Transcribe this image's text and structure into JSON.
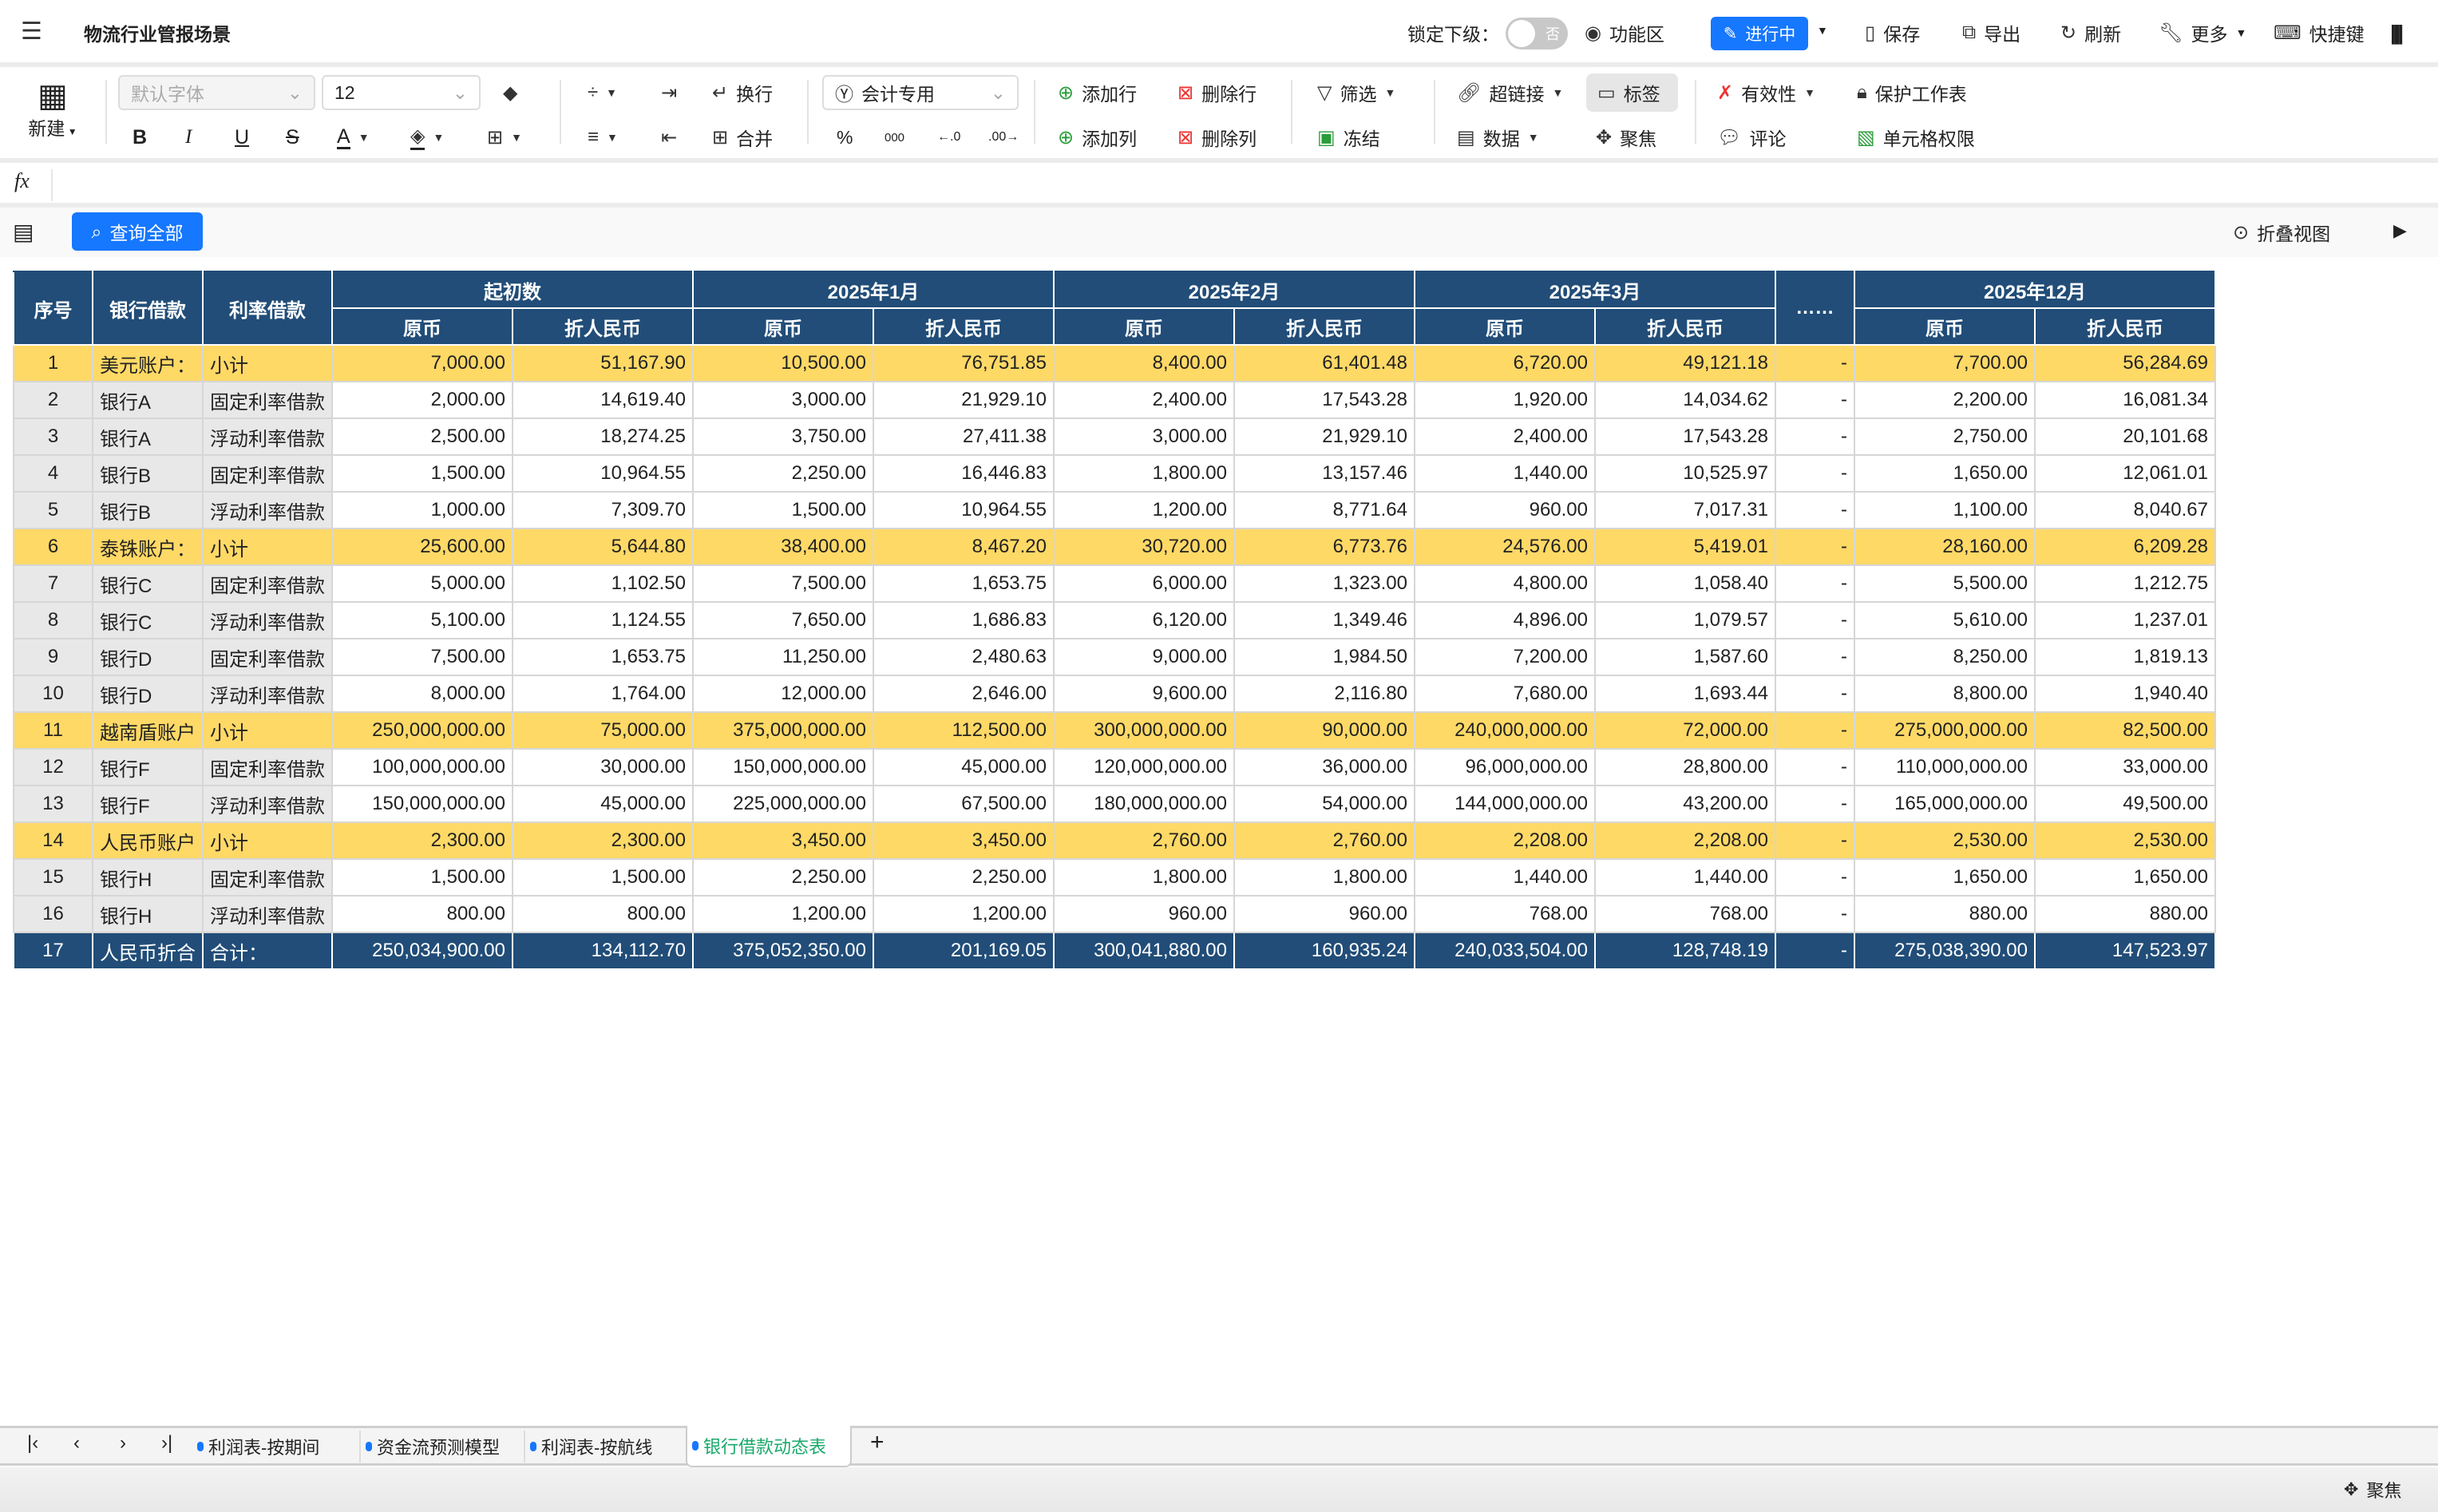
{
  "app": {
    "title": "物流行业管报场景",
    "menu_icon": "menu-icon"
  },
  "topbar": {
    "lock_label": "锁定下级：",
    "lock_toggle": "否",
    "lock_value": false,
    "function_area": "功能区",
    "status_button": "进行中",
    "save": "保存",
    "export": "导出",
    "refresh": "刷新",
    "more": "更多",
    "shortcuts": "快捷键"
  },
  "toolbar": {
    "new": "新建",
    "font_placeholder": "默认字体",
    "font_size": "12",
    "wrap": "换行",
    "merge": "合并",
    "number_format": "会计专用",
    "add_row": "添加行",
    "delete_row": "删除行",
    "add_col": "添加列",
    "delete_col": "删除列",
    "filter": "筛选",
    "freeze": "冻结",
    "hyperlink": "超链接",
    "data": "数据",
    "tag": "标签",
    "focus": "聚焦",
    "validity": "有效性",
    "comment": "评论",
    "protect_sheet": "保护工作表",
    "cell_permission": "单元格权限",
    "bold": "B",
    "italic": "I",
    "underline": "U",
    "strike": "S",
    "font_color": "A",
    "percent": "%",
    "thousands": "000"
  },
  "formula_bar": {
    "fx": "fx",
    "value": ""
  },
  "query": {
    "button": "查询全部",
    "collapse_view": "折叠视图"
  },
  "table": {
    "headers": {
      "seq": "序号",
      "bank": "银行借款",
      "type": "利率借款",
      "periods": [
        "起初数",
        "2025年1月",
        "2025年2月",
        "2025年3月",
        "……",
        "2025年12月"
      ],
      "sub": [
        "原币",
        "折人民币"
      ]
    },
    "rows": [
      {
        "seq": "1",
        "bank": "美元账户：",
        "type": "小计",
        "kind": "sub",
        "values": [
          "7,000.00",
          "51,167.90",
          "10,500.00",
          "76,751.85",
          "8,400.00",
          "61,401.48",
          "6,720.00",
          "49,121.18",
          "-",
          "7,700.00",
          "56,284.69"
        ]
      },
      {
        "seq": "2",
        "bank": "银行A",
        "type": "固定利率借款",
        "kind": "normal",
        "values": [
          "2,000.00",
          "14,619.40",
          "3,000.00",
          "21,929.10",
          "2,400.00",
          "17,543.28",
          "1,920.00",
          "14,034.62",
          "-",
          "2,200.00",
          "16,081.34"
        ]
      },
      {
        "seq": "3",
        "bank": "银行A",
        "type": "浮动利率借款",
        "kind": "normal",
        "values": [
          "2,500.00",
          "18,274.25",
          "3,750.00",
          "27,411.38",
          "3,000.00",
          "21,929.10",
          "2,400.00",
          "17,543.28",
          "-",
          "2,750.00",
          "20,101.68"
        ]
      },
      {
        "seq": "4",
        "bank": "银行B",
        "type": "固定利率借款",
        "kind": "normal",
        "values": [
          "1,500.00",
          "10,964.55",
          "2,250.00",
          "16,446.83",
          "1,800.00",
          "13,157.46",
          "1,440.00",
          "10,525.97",
          "-",
          "1,650.00",
          "12,061.01"
        ]
      },
      {
        "seq": "5",
        "bank": "银行B",
        "type": "浮动利率借款",
        "kind": "normal",
        "values": [
          "1,000.00",
          "7,309.70",
          "1,500.00",
          "10,964.55",
          "1,200.00",
          "8,771.64",
          "960.00",
          "7,017.31",
          "-",
          "1,100.00",
          "8,040.67"
        ]
      },
      {
        "seq": "6",
        "bank": "泰铢账户：",
        "type": "小计",
        "kind": "sub",
        "values": [
          "25,600.00",
          "5,644.80",
          "38,400.00",
          "8,467.20",
          "30,720.00",
          "6,773.76",
          "24,576.00",
          "5,419.01",
          "-",
          "28,160.00",
          "6,209.28"
        ]
      },
      {
        "seq": "7",
        "bank": "银行C",
        "type": "固定利率借款",
        "kind": "normal",
        "values": [
          "5,000.00",
          "1,102.50",
          "7,500.00",
          "1,653.75",
          "6,000.00",
          "1,323.00",
          "4,800.00",
          "1,058.40",
          "-",
          "5,500.00",
          "1,212.75"
        ]
      },
      {
        "seq": "8",
        "bank": "银行C",
        "type": "浮动利率借款",
        "kind": "normal",
        "values": [
          "5,100.00",
          "1,124.55",
          "7,650.00",
          "1,686.83",
          "6,120.00",
          "1,349.46",
          "4,896.00",
          "1,079.57",
          "-",
          "5,610.00",
          "1,237.01"
        ]
      },
      {
        "seq": "9",
        "bank": "银行D",
        "type": "固定利率借款",
        "kind": "normal",
        "values": [
          "7,500.00",
          "1,653.75",
          "11,250.00",
          "2,480.63",
          "9,000.00",
          "1,984.50",
          "7,200.00",
          "1,587.60",
          "-",
          "8,250.00",
          "1,819.13"
        ]
      },
      {
        "seq": "10",
        "bank": "银行D",
        "type": "浮动利率借款",
        "kind": "normal",
        "values": [
          "8,000.00",
          "1,764.00",
          "12,000.00",
          "2,646.00",
          "9,600.00",
          "2,116.80",
          "7,680.00",
          "1,693.44",
          "-",
          "8,800.00",
          "1,940.40"
        ]
      },
      {
        "seq": "11",
        "bank": "越南盾账户",
        "type": "小计",
        "kind": "sub",
        "values": [
          "250,000,000.00",
          "75,000.00",
          "375,000,000.00",
          "112,500.00",
          "300,000,000.00",
          "90,000.00",
          "240,000,000.00",
          "72,000.00",
          "-",
          "275,000,000.00",
          "82,500.00"
        ]
      },
      {
        "seq": "12",
        "bank": "银行F",
        "type": "固定利率借款",
        "kind": "normal",
        "values": [
          "100,000,000.00",
          "30,000.00",
          "150,000,000.00",
          "45,000.00",
          "120,000,000.00",
          "36,000.00",
          "96,000,000.00",
          "28,800.00",
          "-",
          "110,000,000.00",
          "33,000.00"
        ]
      },
      {
        "seq": "13",
        "bank": "银行F",
        "type": "浮动利率借款",
        "kind": "normal",
        "values": [
          "150,000,000.00",
          "45,000.00",
          "225,000,000.00",
          "67,500.00",
          "180,000,000.00",
          "54,000.00",
          "144,000,000.00",
          "43,200.00",
          "-",
          "165,000,000.00",
          "49,500.00"
        ]
      },
      {
        "seq": "14",
        "bank": "人民币账户",
        "type": "小计",
        "kind": "sub",
        "values": [
          "2,300.00",
          "2,300.00",
          "3,450.00",
          "3,450.00",
          "2,760.00",
          "2,760.00",
          "2,208.00",
          "2,208.00",
          "-",
          "2,530.00",
          "2,530.00"
        ]
      },
      {
        "seq": "15",
        "bank": "银行H",
        "type": "固定利率借款",
        "kind": "normal",
        "values": [
          "1,500.00",
          "1,500.00",
          "2,250.00",
          "2,250.00",
          "1,800.00",
          "1,800.00",
          "1,440.00",
          "1,440.00",
          "-",
          "1,650.00",
          "1,650.00"
        ]
      },
      {
        "seq": "16",
        "bank": "银行H",
        "type": "浮动利率借款",
        "kind": "normal",
        "values": [
          "800.00",
          "800.00",
          "1,200.00",
          "1,200.00",
          "960.00",
          "960.00",
          "768.00",
          "768.00",
          "-",
          "880.00",
          "880.00"
        ]
      },
      {
        "seq": "17",
        "bank": "人民币折合",
        "type": "合计：",
        "kind": "total",
        "values": [
          "250,034,900.00",
          "134,112.70",
          "375,052,350.00",
          "201,169.05",
          "300,041,880.00",
          "160,935.24",
          "240,033,504.00",
          "128,748.19",
          "-",
          "275,038,390.00",
          "147,523.97"
        ]
      }
    ]
  },
  "sheet_tabs": [
    {
      "label": "利润表-按期间",
      "active": false
    },
    {
      "label": "资金流预测模型",
      "active": false
    },
    {
      "label": "利润表-按航线",
      "active": false
    },
    {
      "label": "银行借款动态表",
      "active": true
    }
  ],
  "status_bar": {
    "focus": "聚焦"
  },
  "colors": {
    "header": "#214d78",
    "subtotal": "#ffd966",
    "accent": "#1677ff",
    "active_tab": "#1aaa6b"
  }
}
